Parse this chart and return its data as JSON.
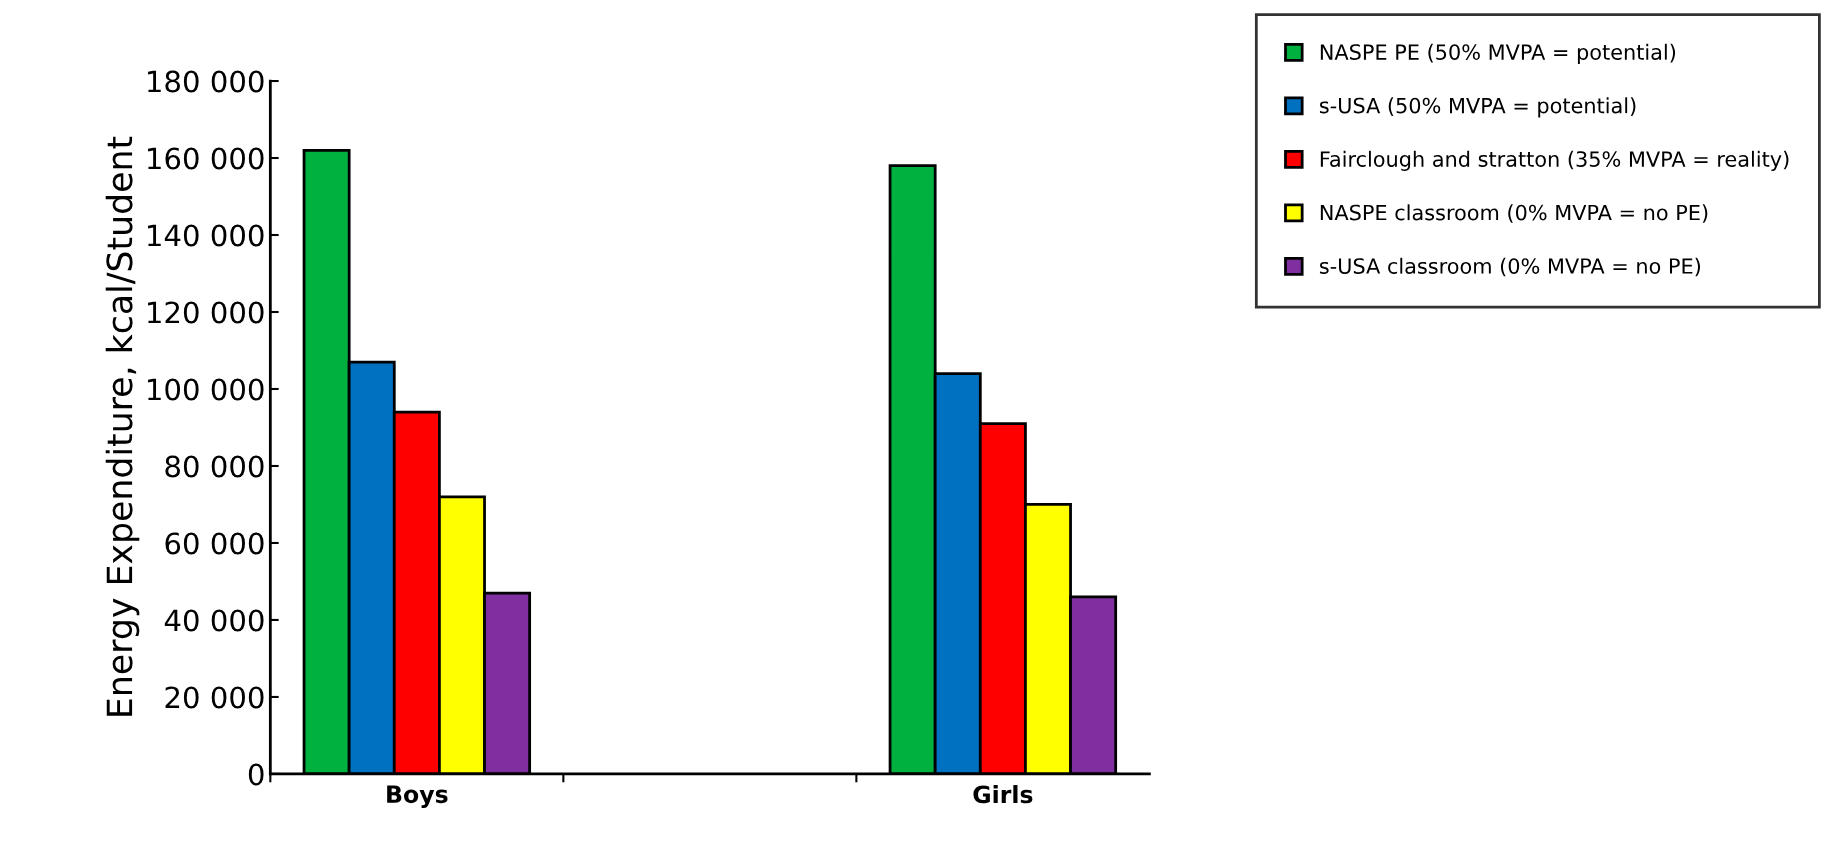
{
  "chart_data": {
    "type": "bar",
    "ylabel": "Energy Expenditure, kcal/Student",
    "categories": [
      "Boys",
      "Girls"
    ],
    "series": [
      {
        "name": "NASPE PE (50% MVPA = potential)",
        "color": "#00b140",
        "values": [
          162000,
          158000
        ]
      },
      {
        "name": "s-USA (50% MVPA = potential)",
        "color": "#0070c0",
        "values": [
          107000,
          104000
        ]
      },
      {
        "name": "Fairclough and stratton (35% MVPA = reality)",
        "color": "#ff0000",
        "values": [
          94000,
          91000
        ]
      },
      {
        "name": "NASPE classroom (0% MVPA = no PE)",
        "color": "#ffff00",
        "values": [
          72000,
          70000
        ]
      },
      {
        "name": "s-USA classroom (0% MVPA = no PE)",
        "color": "#7f2fa0",
        "values": [
          47000,
          46000
        ]
      }
    ],
    "ylim": [
      0,
      180000
    ],
    "yticks": [
      0,
      {
        "value": 20000,
        "label": "20 000"
      },
      {
        "value": 40000,
        "label": "40 000"
      },
      {
        "value": 60000,
        "label": "60 000"
      },
      {
        "value": 80000,
        "label": "80 000"
      },
      {
        "value": 100000,
        "label": "100 000"
      },
      {
        "value": 120000,
        "label": "120 000"
      },
      {
        "value": 140000,
        "label": "140 000"
      },
      {
        "value": 160000,
        "label": "160 000"
      },
      {
        "value": 180000,
        "label": "180 000"
      }
    ],
    "grid": false,
    "legend": "top right"
  }
}
